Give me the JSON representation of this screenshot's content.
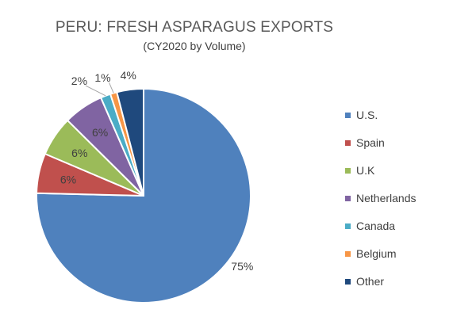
{
  "chart_data": {
    "type": "pie",
    "title": "PERU: FRESH ASPARAGUS EXPORTS",
    "subtitle": "(CY2020 by Volume)",
    "categories": [
      "U.S.",
      "Spain",
      "U.K",
      "Netherlands",
      "Canada",
      "Belgium",
      "Other"
    ],
    "values": [
      75,
      6,
      6,
      6,
      1.5,
      1,
      4
    ],
    "data_labels": [
      "75%",
      "6%",
      "6%",
      "6%",
      "2%",
      "1%",
      "4%"
    ],
    "colors": [
      "#4f81bd",
      "#c0504d",
      "#9bbb59",
      "#8064a2",
      "#4bacc6",
      "#f79646",
      "#1f497d"
    ],
    "start_angle_deg": 0,
    "direction": "clockwise",
    "legend_position": "right"
  }
}
